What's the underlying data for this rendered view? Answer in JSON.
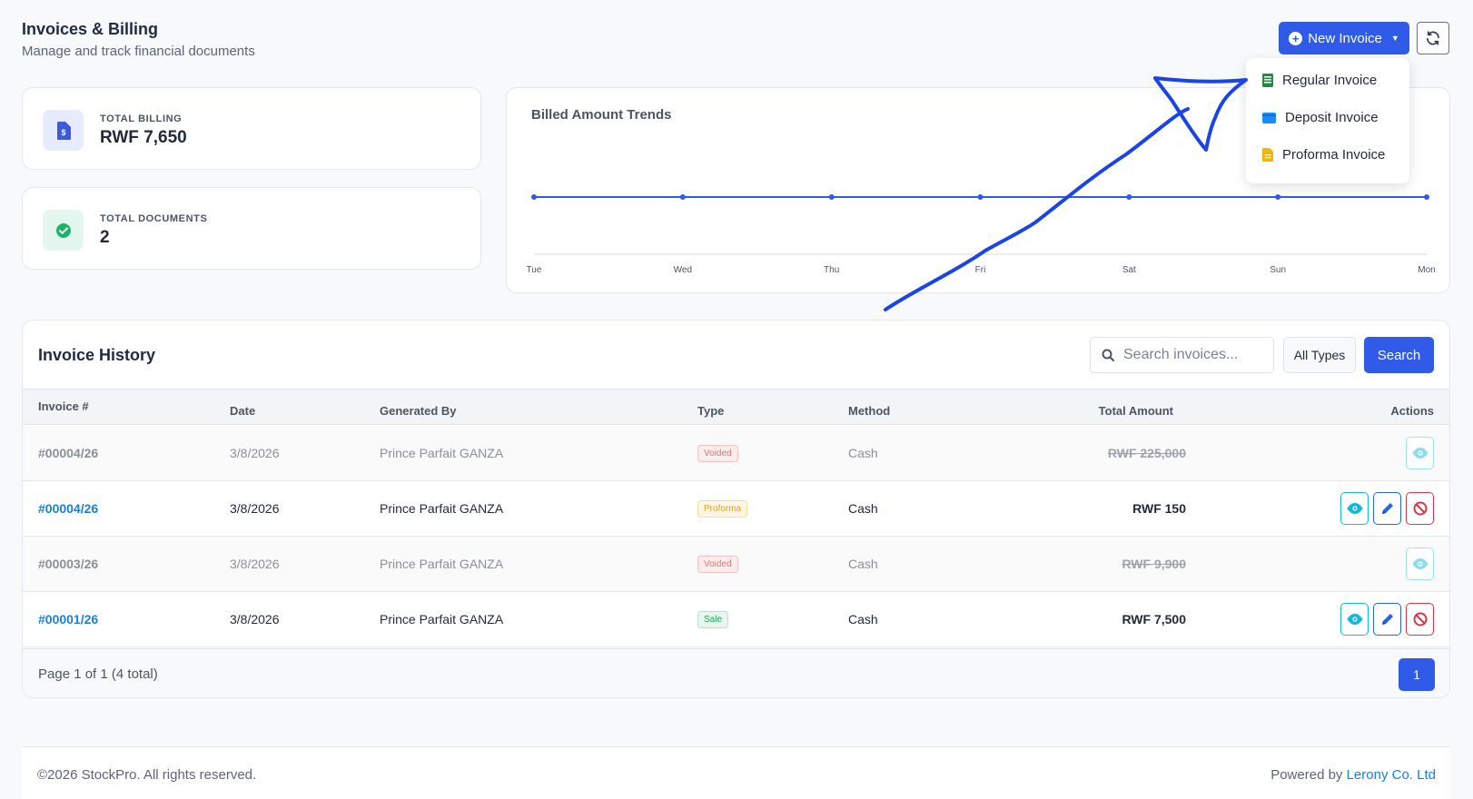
{
  "header": {
    "title": "Invoices & Billing",
    "subtitle": "Manage and track financial documents",
    "new_invoice_label": "New Invoice"
  },
  "dropdown": {
    "items": [
      {
        "label": "Regular Invoice",
        "icon": "sheet-icon",
        "color": "#1e8e3e"
      },
      {
        "label": "Deposit Invoice",
        "icon": "wallet-icon",
        "color": "#1a8cff"
      },
      {
        "label": "Proforma Invoice",
        "icon": "document-icon",
        "color": "#f4b400"
      }
    ]
  },
  "stats": {
    "total_billing_label": "TOTAL BILLING",
    "total_billing_value": "RWF 7,650",
    "total_documents_label": "TOTAL DOCUMENTS",
    "total_documents_value": "2"
  },
  "chart_data": {
    "type": "line",
    "title": "Billed Amount Trends",
    "categories": [
      "Tue",
      "Wed",
      "Thu",
      "Fri",
      "Sat",
      "Sun",
      "Mon"
    ],
    "series": [
      {
        "values": [
          0,
          0,
          0,
          0,
          0,
          0,
          0
        ],
        "color": "#2f5be8"
      }
    ],
    "grid": false
  },
  "history": {
    "title": "Invoice History",
    "search_placeholder": "Search invoices...",
    "type_filter": "All Types",
    "search_label": "Search",
    "columns": [
      "Invoice #",
      "Date",
      "Generated By",
      "Type",
      "Method",
      "Total Amount",
      "Actions"
    ],
    "rows": [
      {
        "invoice": "#00004/26",
        "date": "3/8/2026",
        "by": "Prince Parfait GANZA",
        "type": "Voided",
        "method": "Cash",
        "amount": "RWF 225,000",
        "status": "voided"
      },
      {
        "invoice": "#00004/26",
        "date": "3/8/2026",
        "by": "Prince Parfait GANZA",
        "type": "Proforma",
        "method": "Cash",
        "amount": "RWF 150",
        "status": "active"
      },
      {
        "invoice": "#00003/26",
        "date": "3/8/2026",
        "by": "Prince Parfait GANZA",
        "type": "Voided",
        "method": "Cash",
        "amount": "RWF 9,900",
        "status": "voided"
      },
      {
        "invoice": "#00001/26",
        "date": "3/8/2026",
        "by": "Prince Parfait GANZA",
        "type": "Sale",
        "method": "Cash",
        "amount": "RWF 7,500",
        "status": "active"
      }
    ],
    "page_info": "Page 1 of 1 (4 total)",
    "current_page": "1"
  },
  "footer": {
    "copyright": "©2026 StockPro. All rights reserved.",
    "powered_prefix": "Powered by",
    "powered_company": "Lerony Co. Ltd"
  }
}
